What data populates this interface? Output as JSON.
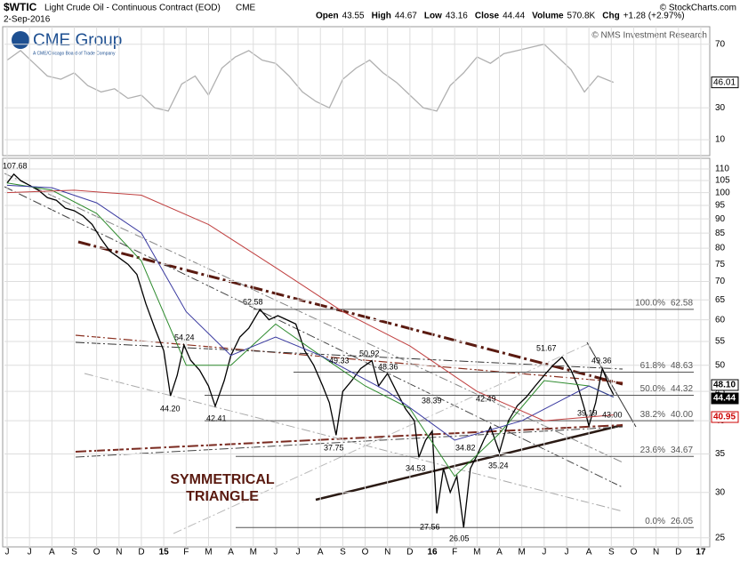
{
  "header": {
    "symbol": "$WTIC",
    "name": "Light Crude Oil - Continuous Contract (EOD)",
    "exchange": "CME",
    "date": "2-Sep-2016",
    "quote": [
      [
        "Open",
        "43.55"
      ],
      [
        "High",
        "44.67"
      ],
      [
        "Low",
        "43.16"
      ],
      [
        "Close",
        "44.44"
      ],
      [
        "Volume",
        "570.8K"
      ],
      [
        "Chg",
        "+1.28 (+2.97%)"
      ]
    ],
    "copyright": "© StockCharts.com",
    "credit": "© NMS Investment Research",
    "logo": "CME Group",
    "logo_sub": "A CME/Chicago Board of Trade Company"
  },
  "chart_data": [
    {
      "type": "line",
      "ylim": [
        0,
        81
      ],
      "yticks": [
        10,
        30,
        70
      ],
      "xlim": [
        -0.12,
        31.4
      ],
      "grid": true,
      "last_label": "46.01",
      "series": [
        {
          "color": "#b0b0b0",
          "x": [
            0,
            0.6,
            1.2,
            1.8,
            2.4,
            3,
            3.6,
            4.2,
            4.8,
            5.4,
            6,
            6.6,
            7.2,
            7.8,
            8.4,
            9,
            9.6,
            10.2,
            10.8,
            11.4,
            12,
            12.6,
            13.2,
            13.8,
            14.4,
            15,
            15.6,
            16.2,
            16.8,
            17.4,
            18,
            18.6,
            19.2,
            19.8,
            20.4,
            21,
            21.6,
            22.2,
            22.8,
            23.4,
            24,
            24.6,
            25.2,
            25.8,
            26.4,
            27.1
          ],
          "values": [
            60,
            66,
            58,
            50,
            48,
            52,
            44,
            40,
            42,
            36,
            38,
            30,
            28,
            45,
            50,
            38,
            55,
            62,
            66,
            60,
            58,
            50,
            40,
            34,
            30,
            48,
            55,
            60,
            52,
            46,
            38,
            30,
            28,
            44,
            52,
            62,
            58,
            64,
            66,
            68,
            70,
            62,
            54,
            40,
            50,
            46.01
          ]
        }
      ]
    },
    {
      "type": "line",
      "log_scale": true,
      "ylim": [
        24.1,
        114.8
      ],
      "yticks": [
        25,
        30,
        35,
        40,
        45,
        50,
        55,
        60,
        65,
        70,
        75,
        80,
        85,
        90,
        95,
        100,
        105,
        110
      ],
      "xlim": [
        -0.12,
        31.4
      ],
      "grid": true,
      "x_labels": [
        "J",
        "J",
        "A",
        "S",
        "O",
        "N",
        "D",
        "15",
        "F",
        "M",
        "A",
        "M",
        "J",
        "J",
        "A",
        "S",
        "O",
        "N",
        "D",
        "16",
        "F",
        "M",
        "A",
        "M",
        "J",
        "J",
        "A",
        "S",
        "O",
        "N",
        "D",
        "17"
      ],
      "last_labels": [
        "48.10",
        "44.44",
        "40.95"
      ],
      "annotations": [
        "107.68",
        "62.58",
        "54.24",
        "44.20",
        "42.41",
        "37.75",
        "49.33",
        "50.92",
        "48.36",
        "38.39",
        "34.53",
        "34.82",
        "27.56",
        "26.05",
        "35.24",
        "42.49",
        "51.67",
        "49.36",
        "39.19",
        "43.00"
      ],
      "pattern": [
        "SYMMETRICAL",
        "TRIANGLE"
      ],
      "fib": [
        {
          "pct": "100.0%",
          "value": 62.58,
          "label": "62.58"
        },
        {
          "pct": "61.8%",
          "value": 48.63,
          "label": "48.63"
        },
        {
          "pct": "50.0%",
          "value": 44.32,
          "label": "44.32"
        },
        {
          "pct": "38.2%",
          "value": 40,
          "label": "40.00"
        },
        {
          "pct": "23.6%",
          "value": 34.67,
          "label": "34.67"
        },
        {
          "pct": "0.0%",
          "value": 26.05,
          "label": "26.05"
        }
      ],
      "series": [
        {
          "color": "#000000",
          "x": [
            0,
            0.3,
            0.6,
            1,
            1.4,
            1.8,
            2.2,
            2.6,
            3,
            3.4,
            3.8,
            4.2,
            4.6,
            5,
            5.4,
            5.8,
            6.2,
            6.6,
            7,
            7.3,
            7.6,
            7.9,
            8.2,
            8.6,
            9,
            9.3,
            9.7,
            10,
            10.4,
            10.8,
            11.3,
            11.7,
            12.1,
            12.5,
            12.9,
            13.3,
            13.7,
            14.1,
            14.4,
            14.7,
            15,
            15.4,
            15.8,
            16.3,
            16.6,
            17,
            17.4,
            17.8,
            18.2,
            18.4,
            18.7,
            19,
            19.2,
            19.5,
            19.8,
            20.1,
            20.4,
            20.7,
            21,
            21.3,
            21.6,
            22,
            22.4,
            22.8,
            23.2,
            23.6,
            24,
            24.4,
            24.8,
            25.2,
            25.5,
            25.8,
            26,
            26.3,
            26.6,
            26.9,
            27.1
          ],
          "values": [
            104,
            107.68,
            105,
            103,
            101,
            98,
            97,
            94,
            93,
            91,
            88,
            83,
            79,
            77,
            75,
            72,
            64,
            58,
            53,
            44.2,
            48,
            54.24,
            51,
            49,
            46,
            42.41,
            47,
            52,
            56,
            58,
            62.58,
            60,
            61,
            60,
            59,
            53,
            50,
            46,
            43,
            37.75,
            45,
            47,
            49.33,
            50.92,
            46,
            48.36,
            45,
            42,
            40,
            34.53,
            37,
            38.39,
            27.56,
            33,
            30,
            32,
            26.05,
            33,
            34.82,
            37,
            39,
            35.24,
            40,
            42.49,
            44,
            46,
            48,
            50,
            51.67,
            49,
            46,
            42,
            39.19,
            43,
            49.36,
            46,
            44.44
          ]
        },
        {
          "color": "#2e8b2e",
          "x": [
            0,
            2,
            4,
            6,
            8,
            10,
            12,
            14,
            16,
            18,
            20,
            22,
            24,
            26,
            27.1
          ],
          "values": [
            104,
            101,
            92,
            76,
            50,
            50,
            59,
            52,
            46,
            42,
            32,
            38,
            47,
            46,
            44
          ]
        },
        {
          "color": "#3a3aa0",
          "x": [
            0,
            2,
            4,
            6,
            8,
            10,
            12,
            14,
            17,
            20,
            23,
            26,
            27.1
          ],
          "values": [
            103,
            102,
            96,
            85,
            62,
            52,
            56,
            52,
            45,
            37,
            40,
            46,
            44
          ]
        },
        {
          "color": "#c04040",
          "x": [
            0,
            3,
            6,
            9,
            12,
            15,
            18,
            21,
            24,
            27.1
          ],
          "values": [
            100,
            101,
            99,
            88,
            74,
            62,
            54,
            45,
            40,
            40.95
          ]
        }
      ]
    }
  ]
}
